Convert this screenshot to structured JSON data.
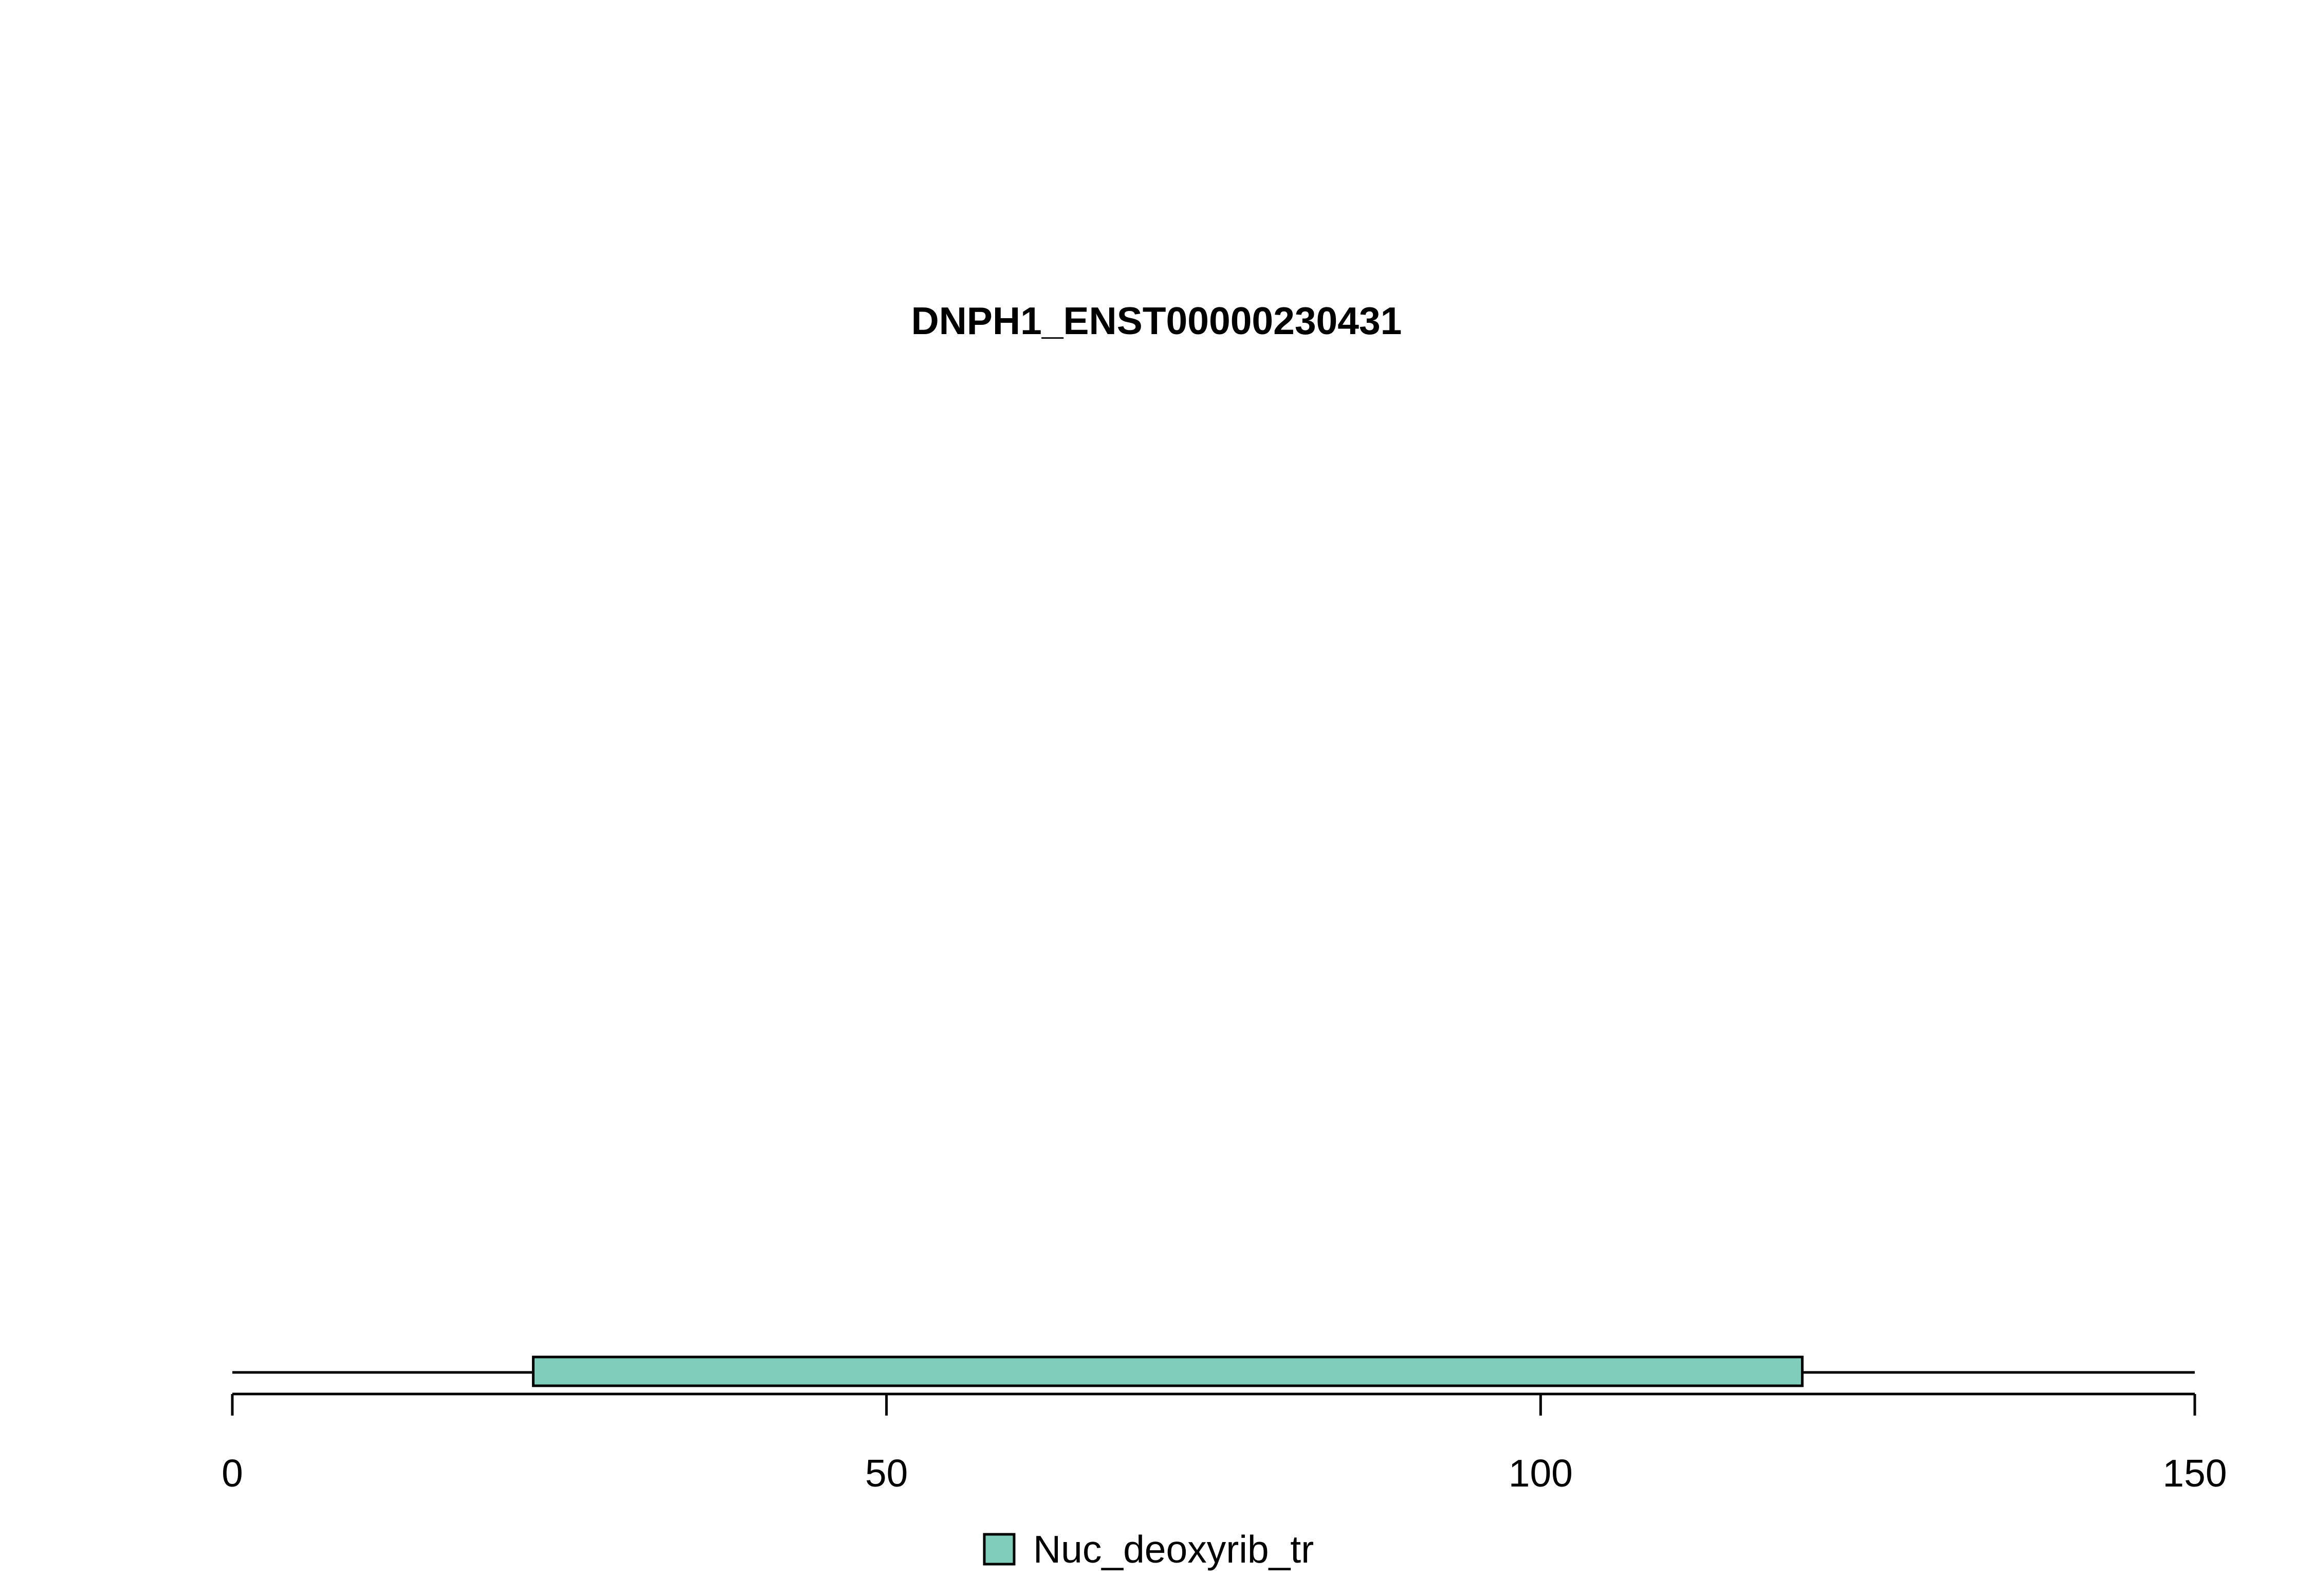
{
  "chart_data": {
    "type": "domain-track",
    "title": "DNPH1_ENST00000230431",
    "xlim": [
      0,
      150
    ],
    "sequence_length": 150,
    "x_ticks": [
      0,
      50,
      100,
      150
    ],
    "x_tick_labels": [
      "0",
      "50",
      "100",
      "150"
    ],
    "domains": [
      {
        "name": "Nuc_deoxyrib_tr",
        "start": 23,
        "end": 120,
        "color": "#7fcdbb"
      }
    ],
    "legend": {
      "placement": "bottom-center",
      "entries": [
        {
          "label": "Nuc_deoxyrib_tr",
          "color": "#7fcdbb"
        }
      ]
    }
  }
}
